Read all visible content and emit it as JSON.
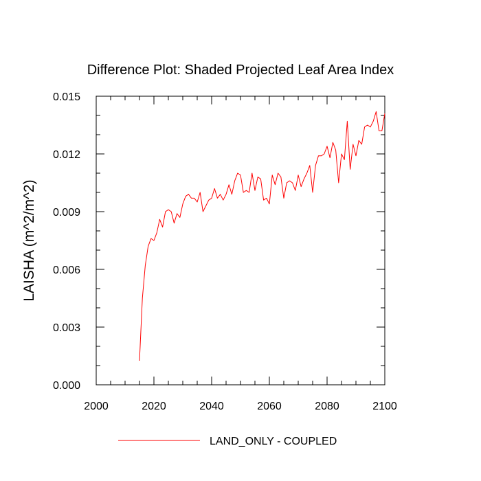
{
  "chart_data": {
    "type": "line",
    "title": "Difference Plot: Shaded Projected Leaf Area Index",
    "xlabel": "",
    "ylabel": "LAISHA  (m^2/m^2)",
    "xlim": [
      2000,
      2100
    ],
    "ylim": [
      0.0,
      0.015
    ],
    "x_ticks": [
      2000,
      2020,
      2040,
      2060,
      2080,
      2100
    ],
    "x_tick_labels": [
      "2000",
      "2020",
      "2040",
      "2060",
      "2080",
      "2100"
    ],
    "y_ticks": [
      0.0,
      0.003,
      0.006,
      0.009,
      0.012,
      0.015
    ],
    "y_tick_labels": [
      "0.000",
      "0.003",
      "0.006",
      "0.009",
      "0.012",
      "0.015"
    ],
    "grid": false,
    "legend_position": "bottom",
    "series": [
      {
        "name": "LAND_ONLY - COUPLED",
        "color": "#ff0000",
        "x": [
          2015,
          2016,
          2017,
          2018,
          2019,
          2020,
          2021,
          2022,
          2023,
          2024,
          2025,
          2026,
          2027,
          2028,
          2029,
          2030,
          2031,
          2032,
          2033,
          2034,
          2035,
          2036,
          2037,
          2038,
          2039,
          2040,
          2041,
          2042,
          2043,
          2044,
          2045,
          2046,
          2047,
          2048,
          2049,
          2050,
          2051,
          2052,
          2053,
          2054,
          2055,
          2056,
          2057,
          2058,
          2059,
          2060,
          2061,
          2062,
          2063,
          2064,
          2065,
          2066,
          2067,
          2068,
          2069,
          2070,
          2071,
          2072,
          2073,
          2074,
          2075,
          2076,
          2077,
          2078,
          2079,
          2080,
          2081,
          2082,
          2083,
          2084,
          2085,
          2086,
          2087,
          2088,
          2089,
          2090,
          2091,
          2092,
          2093,
          2094,
          2095,
          2096,
          2097,
          2098,
          2099,
          2100
        ],
        "values": [
          0.00125,
          0.0045,
          0.0062,
          0.0072,
          0.0076,
          0.0075,
          0.0079,
          0.0086,
          0.0082,
          0.009,
          0.0091,
          0.009,
          0.0084,
          0.0089,
          0.0087,
          0.0094,
          0.0098,
          0.0099,
          0.0097,
          0.0097,
          0.0095,
          0.01,
          0.009,
          0.0093,
          0.0096,
          0.0097,
          0.0102,
          0.0097,
          0.0099,
          0.0096,
          0.0099,
          0.0104,
          0.0099,
          0.0106,
          0.011,
          0.0109,
          0.01,
          0.0101,
          0.01,
          0.011,
          0.0101,
          0.0108,
          0.0107,
          0.0096,
          0.0097,
          0.0094,
          0.0109,
          0.0104,
          0.011,
          0.0108,
          0.0097,
          0.0105,
          0.0106,
          0.0105,
          0.0101,
          0.0109,
          0.0103,
          0.0107,
          0.011,
          0.0114,
          0.01,
          0.0114,
          0.0119,
          0.0119,
          0.012,
          0.0124,
          0.0118,
          0.0126,
          0.0122,
          0.0105,
          0.012,
          0.0117,
          0.0137,
          0.0112,
          0.0125,
          0.0119,
          0.0127,
          0.0125,
          0.0134,
          0.0135,
          0.0134,
          0.0137,
          0.0142,
          0.0132,
          0.0132,
          0.0141
        ]
      }
    ]
  }
}
